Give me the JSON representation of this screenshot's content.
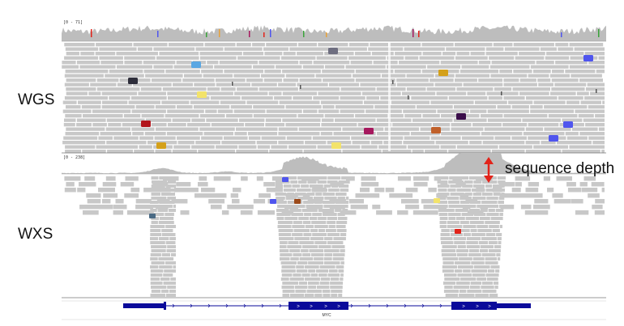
{
  "labels": {
    "wgs": "WGS",
    "wxs": "WXS",
    "depth_annotation": "sequence depth"
  },
  "tracks": {
    "wgs_coverage_range": "[0 - 71]",
    "wxs_coverage_range": "[0 - 238]"
  },
  "gene": {
    "name": "MYC",
    "exon_arrow_glyph": ">"
  },
  "colors": {
    "read": "#c8c8c8",
    "coverage": "#bdbdbd",
    "gene": "#0a0a9a",
    "arrow": "#e2231a",
    "mismatch_blue": "#4f55ee",
    "mismatch_yellow": "#f3e36a",
    "mismatch_red": "#b2151c",
    "mismatch_maroon": "#a6185e"
  }
}
